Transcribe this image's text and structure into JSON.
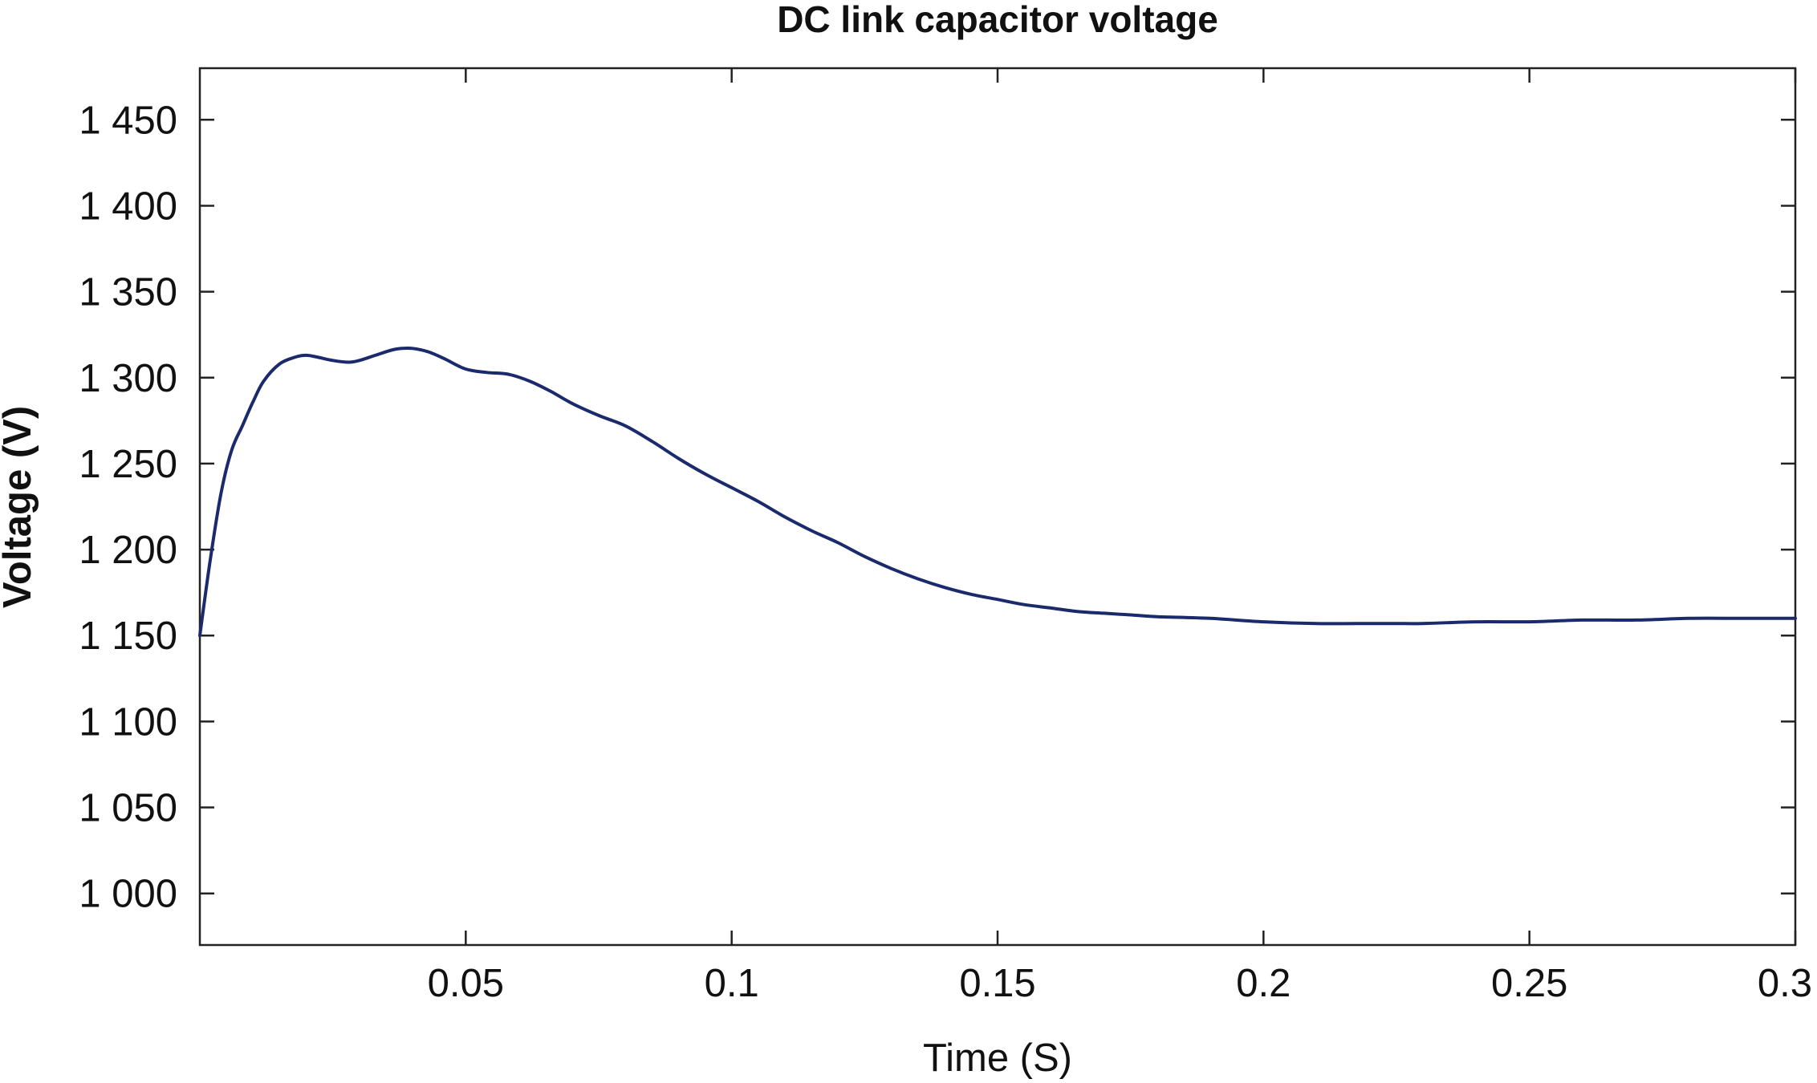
{
  "chart_data": {
    "type": "line",
    "title": "DC link capacitor voltage",
    "xlabel": "Time (S)",
    "ylabel": "Voltage (V)",
    "xlim": [
      0,
      0.3
    ],
    "ylim": [
      970,
      1480
    ],
    "xticks": [
      0.05,
      0.1,
      0.15,
      0.2,
      0.25,
      0.3
    ],
    "xtick_labels": [
      "0.05",
      "0.1",
      "0.15",
      "0.2",
      "0.25",
      "0.3"
    ],
    "yticks": [
      1000,
      1050,
      1100,
      1150,
      1200,
      1250,
      1300,
      1350,
      1400,
      1450
    ],
    "ytick_labels": [
      "1 000",
      "1 050",
      "1 100",
      "1 150",
      "1 200",
      "1 250",
      "1 300",
      "1 350",
      "1 400",
      "1 450"
    ],
    "grid": false,
    "series": [
      {
        "color": "#1a2a6c",
        "x": [
          0,
          0.002,
          0.004,
          0.006,
          0.008,
          0.01,
          0.012,
          0.015,
          0.018,
          0.02,
          0.022,
          0.025,
          0.028,
          0.03,
          0.033,
          0.036,
          0.038,
          0.04,
          0.043,
          0.046,
          0.05,
          0.054,
          0.058,
          0.062,
          0.066,
          0.07,
          0.075,
          0.08,
          0.085,
          0.09,
          0.095,
          0.1,
          0.105,
          0.11,
          0.115,
          0.12,
          0.125,
          0.13,
          0.135,
          0.14,
          0.145,
          0.15,
          0.155,
          0.16,
          0.165,
          0.17,
          0.175,
          0.18,
          0.19,
          0.2,
          0.21,
          0.22,
          0.225,
          0.23,
          0.24,
          0.25,
          0.26,
          0.27,
          0.28,
          0.29,
          0.3
        ],
        "y": [
          1150,
          1195,
          1233,
          1258,
          1272,
          1286,
          1298,
          1308,
          1312,
          1313,
          1312,
          1310,
          1309,
          1310,
          1313,
          1316,
          1317,
          1317,
          1315,
          1311,
          1305,
          1303,
          1302,
          1298,
          1292,
          1285,
          1278,
          1272,
          1263,
          1253,
          1244,
          1236,
          1228,
          1219,
          1211,
          1204,
          1196,
          1189,
          1183,
          1178,
          1174,
          1171,
          1168,
          1166,
          1164,
          1163,
          1162,
          1161,
          1160,
          1158,
          1157,
          1157,
          1157,
          1157,
          1158,
          1158,
          1159,
          1159,
          1160,
          1160,
          1160
        ]
      }
    ]
  }
}
